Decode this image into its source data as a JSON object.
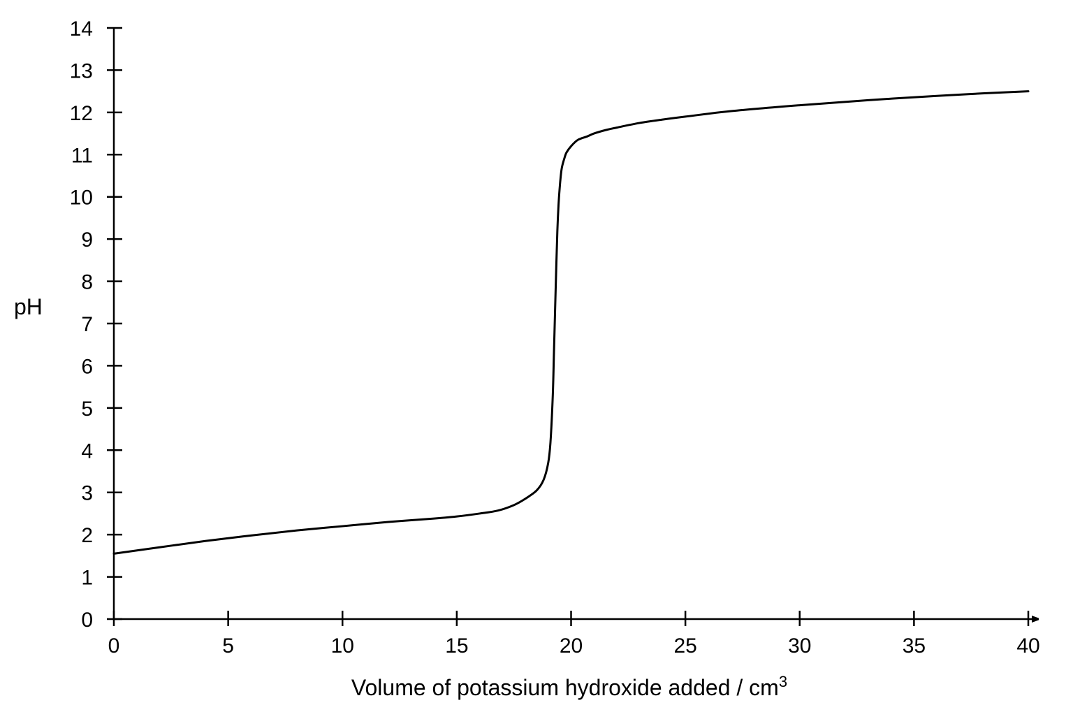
{
  "chart_data": {
    "type": "line",
    "title": "",
    "xlabel": "Volume of potassium hydroxide added / cm",
    "xlabel_superscript": "3",
    "ylabel": "pH",
    "xlim": [
      0,
      40
    ],
    "ylim": [
      0,
      14
    ],
    "x_ticks": [
      "0",
      "5",
      "10",
      "15",
      "20",
      "25",
      "30",
      "35",
      "40"
    ],
    "y_ticks": [
      "0",
      "1",
      "2",
      "3",
      "4",
      "5",
      "6",
      "7",
      "8",
      "9",
      "10",
      "11",
      "12",
      "13",
      "14"
    ],
    "grid": false,
    "legend": "none",
    "series": [
      {
        "color": "#000000",
        "x": [
          0,
          2,
          4,
          6,
          8,
          10,
          12,
          14,
          15,
          16,
          16.8,
          17.5,
          18,
          18.5,
          18.8,
          19.0,
          19.1,
          19.2,
          19.25,
          19.3,
          19.35,
          19.4,
          19.45,
          19.5,
          19.55,
          19.6,
          19.7,
          19.8,
          20.0,
          20.3,
          20.7,
          21.0,
          21.5,
          22,
          23,
          24,
          25,
          27,
          30,
          33,
          36,
          38,
          40
        ],
        "y": [
          1.55,
          1.7,
          1.85,
          1.98,
          2.1,
          2.2,
          2.3,
          2.38,
          2.43,
          2.5,
          2.57,
          2.7,
          2.85,
          3.05,
          3.3,
          3.7,
          4.2,
          5.3,
          6.3,
          7.3,
          8.3,
          9.2,
          9.8,
          10.2,
          10.5,
          10.7,
          10.9,
          11.05,
          11.2,
          11.35,
          11.43,
          11.5,
          11.58,
          11.64,
          11.75,
          11.83,
          11.9,
          12.03,
          12.17,
          12.29,
          12.39,
          12.45,
          12.5
        ]
      }
    ]
  }
}
